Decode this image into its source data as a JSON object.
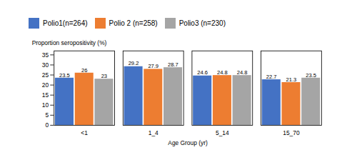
{
  "chart_data": {
    "type": "bar",
    "categories": [
      "<1",
      "1_4",
      "5_14",
      "15_70"
    ],
    "series": [
      {
        "name": "Polio1(n=264)",
        "color": "#4472C4",
        "values": [
          23.5,
          29.2,
          24.6,
          22.7
        ]
      },
      {
        "name": "Polio 2 (n=258)",
        "color": "#ED7D31",
        "values": [
          26,
          27.9,
          24.8,
          21.3
        ]
      },
      {
        "name": "Polio3 (n=230)",
        "color": "#A5A5A5",
        "values": [
          23,
          28.7,
          24.8,
          23.5
        ]
      }
    ],
    "xlabel": "Age Group (yr)",
    "ylabel": "Proportion seropositivity (%)",
    "ylim": [
      0,
      37
    ],
    "yticks": [
      0,
      5,
      10,
      15,
      20,
      25,
      30,
      35
    ],
    "grid": false,
    "data_labels": true,
    "legend": "top"
  }
}
